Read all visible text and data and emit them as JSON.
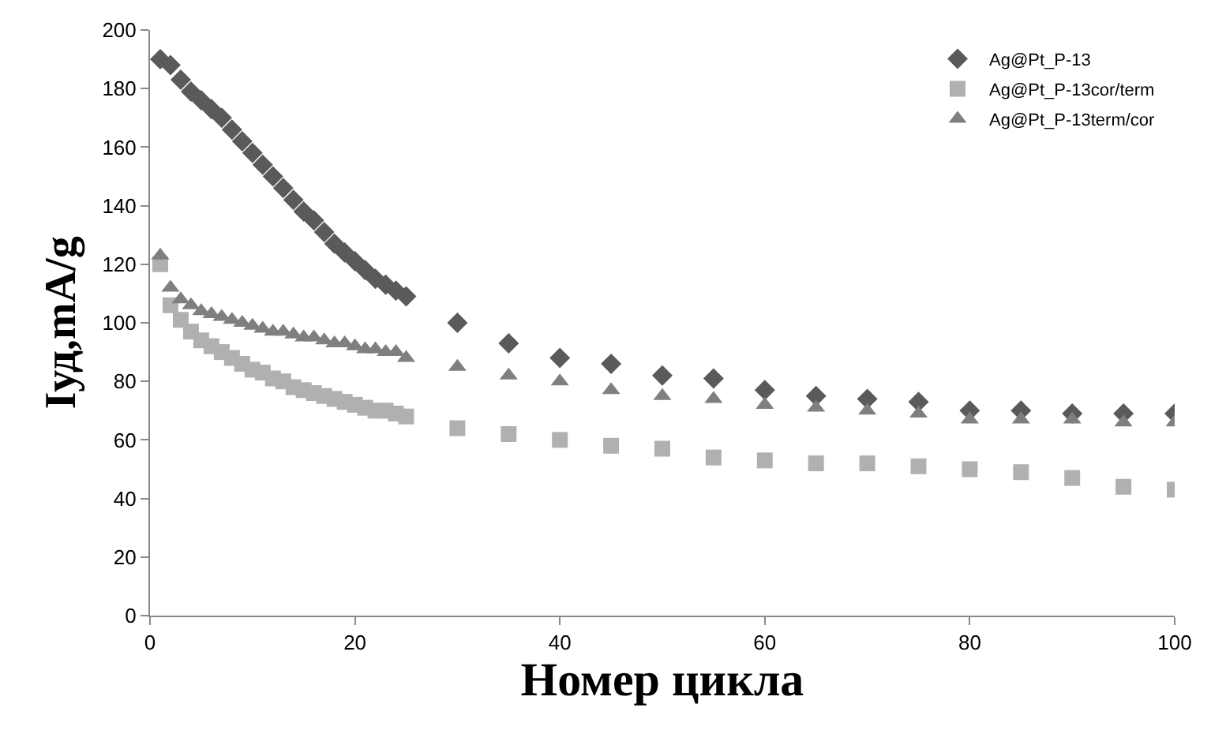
{
  "chart_data": {
    "type": "scatter",
    "xlabel": "Номер цикла",
    "ylabel": "Iуд,mA/g",
    "x": [
      1,
      2,
      3,
      4,
      5,
      6,
      7,
      8,
      9,
      10,
      11,
      12,
      13,
      14,
      15,
      16,
      17,
      18,
      19,
      20,
      21,
      22,
      23,
      24,
      25,
      30,
      35,
      40,
      45,
      50,
      55,
      60,
      65,
      70,
      75,
      80,
      85,
      90,
      95,
      100
    ],
    "series": [
      {
        "name": "Ag@Pt_P-13",
        "color": "#5a5a5a",
        "marker": "diamond",
        "values": [
          190,
          188,
          183,
          179,
          176,
          173,
          170,
          166,
          162,
          158,
          154,
          150,
          146,
          142,
          138,
          135,
          131,
          127,
          124,
          121,
          118,
          115,
          113,
          111,
          109,
          100,
          93,
          88,
          86,
          82,
          81,
          77,
          75,
          74,
          73,
          70,
          70,
          69,
          69,
          69
        ]
      },
      {
        "name": "Ag@Pt_P-13cor/term",
        "color": "#b0b0b0",
        "marker": "square",
        "values": [
          120,
          106,
          101,
          97,
          94,
          92,
          90,
          88,
          86,
          84,
          83,
          81,
          80,
          78,
          77,
          76,
          75,
          74,
          73,
          72,
          71,
          70,
          70,
          69,
          68,
          64,
          62,
          60,
          58,
          57,
          54,
          53,
          52,
          52,
          51,
          50,
          49,
          47,
          44,
          43
        ]
      },
      {
        "name": "Ag@Pt_P-13term/cor",
        "color": "#7f7f7f",
        "marker": "triangle",
        "values": [
          123,
          112,
          108,
          106,
          104,
          103,
          102,
          101,
          100,
          99,
          98,
          97,
          97,
          96,
          95,
          95,
          94,
          93,
          93,
          92,
          91,
          91,
          90,
          90,
          88,
          85,
          82,
          80,
          77,
          75,
          74,
          72,
          71,
          70,
          69,
          67,
          67,
          67,
          66,
          66
        ]
      }
    ],
    "xlim": [
      0,
      100
    ],
    "xticks": [
      0,
      20,
      40,
      60,
      80,
      100
    ],
    "ylim": [
      0,
      200
    ],
    "yticks": [
      0,
      20,
      40,
      60,
      80,
      100,
      120,
      140,
      160,
      180,
      200
    ],
    "legend": "top right"
  }
}
